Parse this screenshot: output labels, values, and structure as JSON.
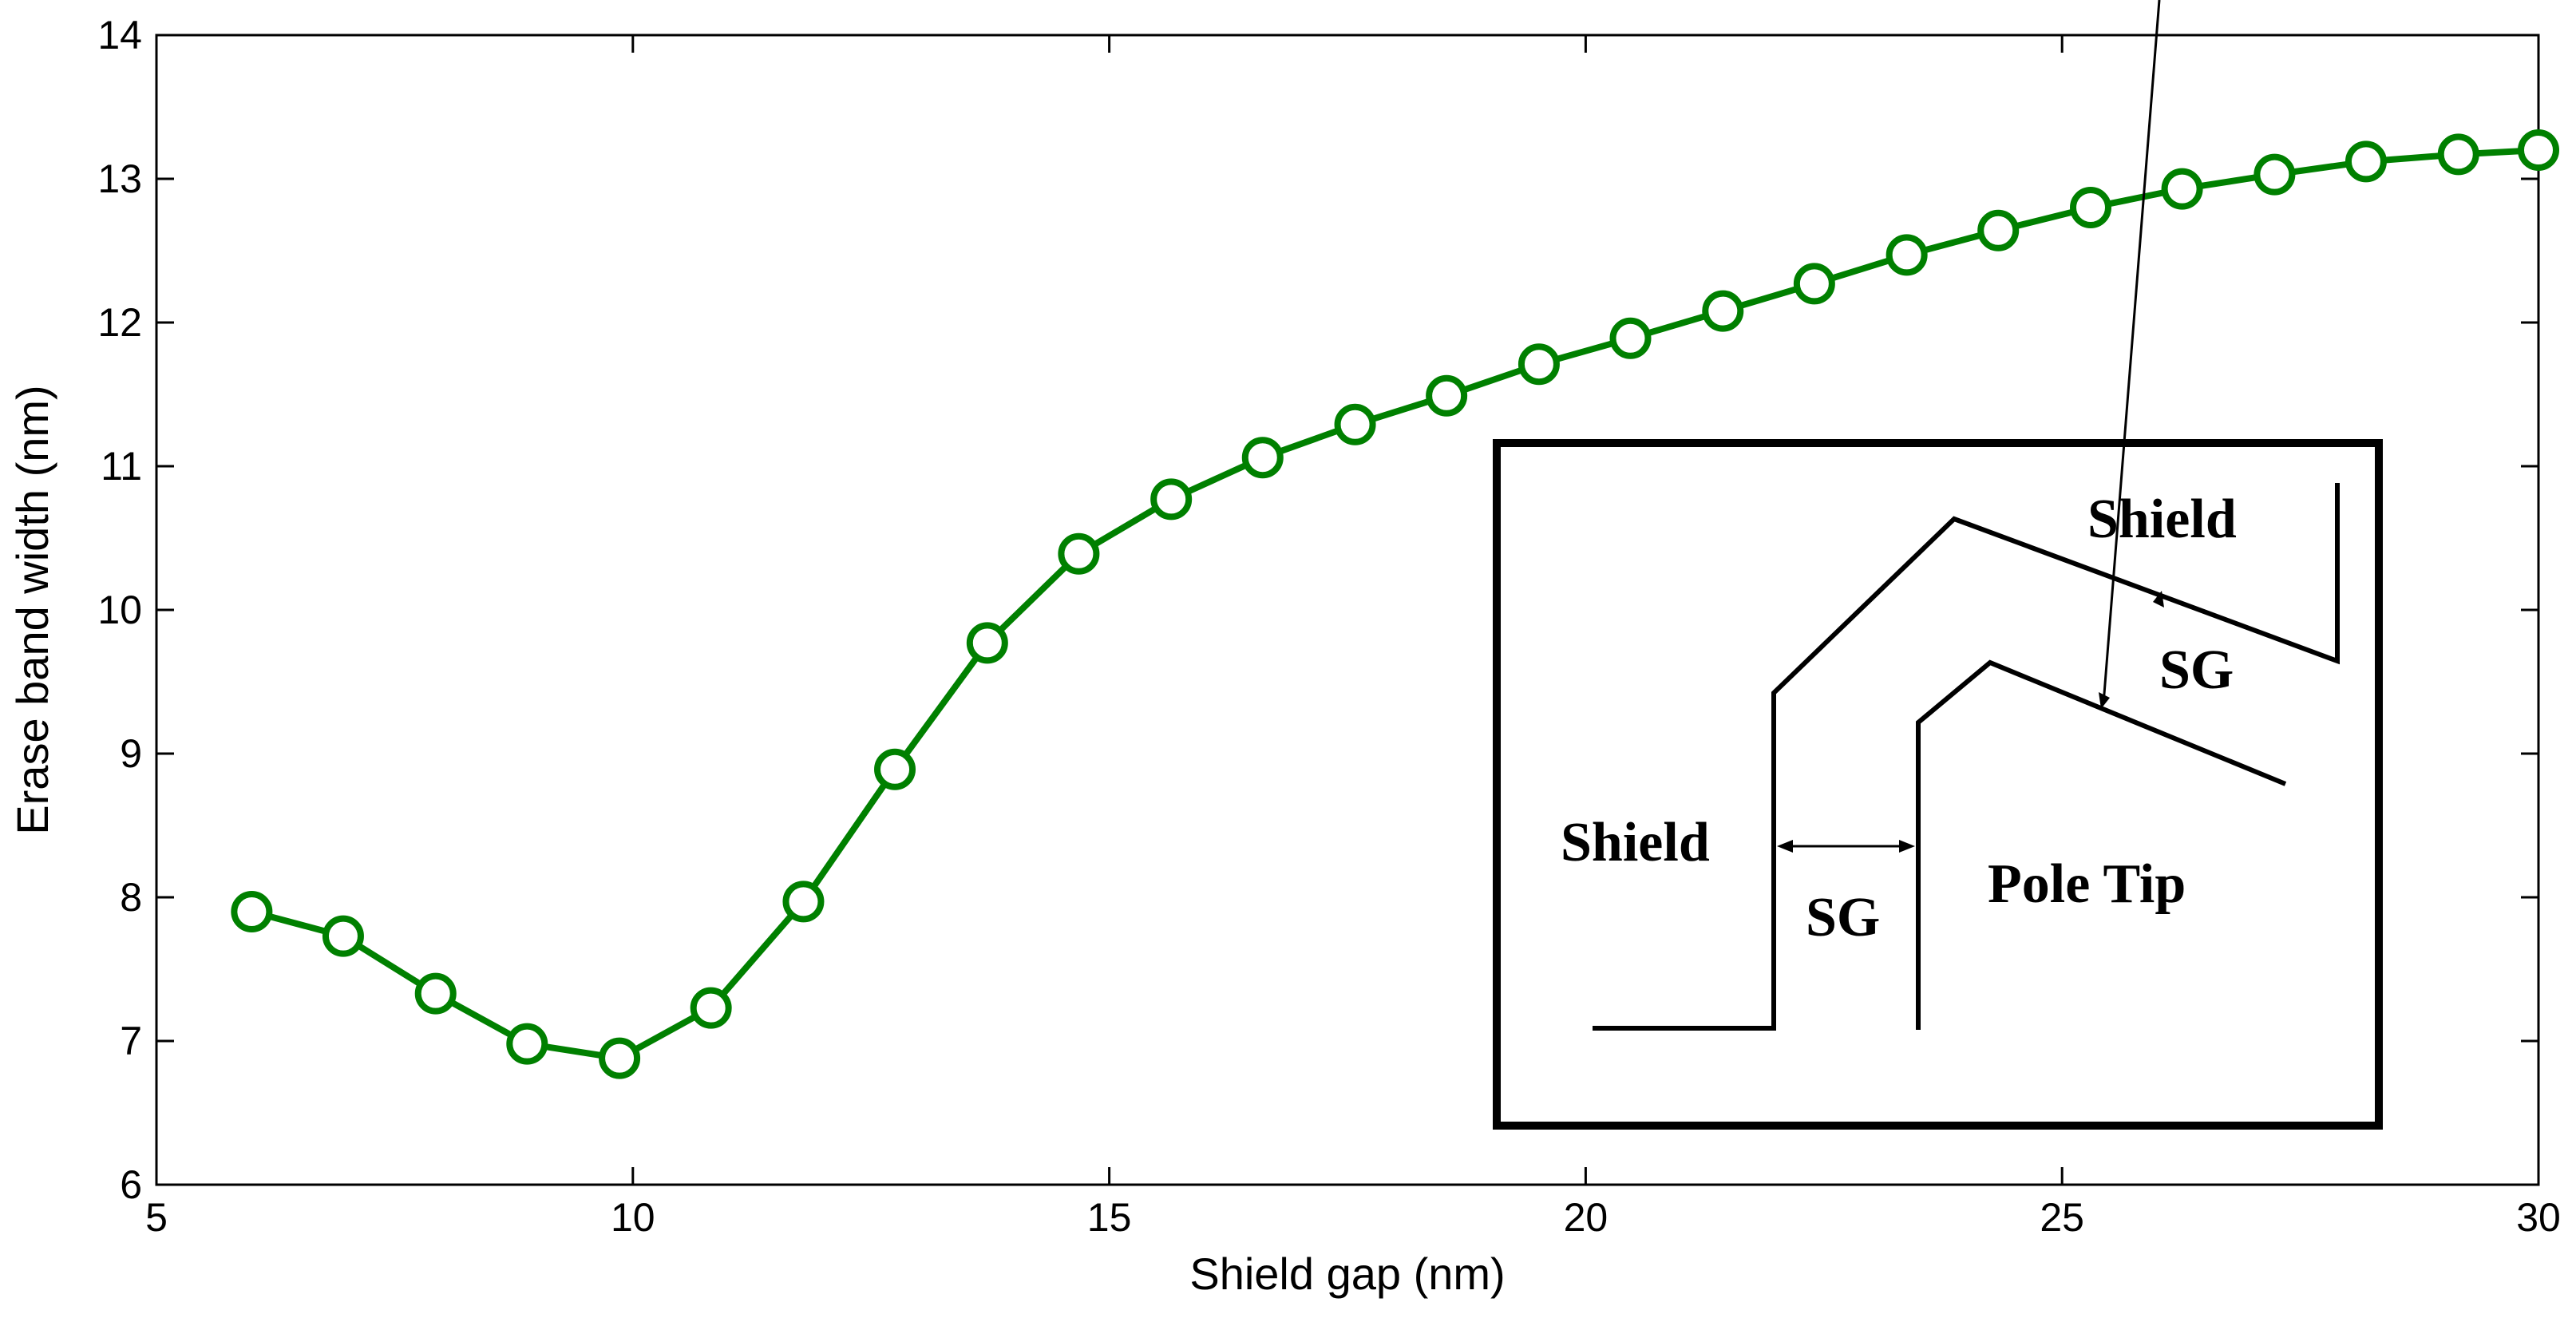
{
  "chart_data": {
    "type": "line",
    "title": "",
    "xlabel": "Shield gap (nm)",
    "ylabel": "Erase band width (nm)",
    "xlim": [
      5,
      30
    ],
    "ylim": [
      6,
      14
    ],
    "xticks": [
      5,
      10,
      15,
      20,
      25,
      30
    ],
    "yticks": [
      6,
      7,
      8,
      9,
      10,
      11,
      12,
      13,
      14
    ],
    "grid": false,
    "series": [
      {
        "name": "Erase band width",
        "color": "#008000",
        "marker": "circle",
        "x": [
          6.0,
          6.96,
          7.93,
          8.89,
          9.86,
          10.82,
          11.79,
          12.75,
          13.72,
          14.68,
          15.65,
          16.61,
          17.58,
          18.54,
          19.51,
          20.47,
          21.44,
          22.4,
          23.37,
          24.33,
          25.3,
          26.26,
          27.23,
          28.19,
          29.16,
          30.0
        ],
        "y": [
          7.9,
          7.73,
          7.33,
          6.98,
          6.88,
          7.23,
          7.97,
          8.89,
          9.77,
          10.39,
          10.77,
          11.06,
          11.29,
          11.49,
          11.71,
          11.89,
          12.08,
          12.27,
          12.47,
          12.64,
          12.8,
          12.93,
          13.03,
          13.12,
          13.17,
          13.2
        ]
      }
    ],
    "inset": {
      "labels": {
        "shield_top": "Shield",
        "sg_top": "SG",
        "shield_left": "Shield",
        "sg_bottom": "SG",
        "pole_tip": "Pole Tip"
      }
    }
  }
}
